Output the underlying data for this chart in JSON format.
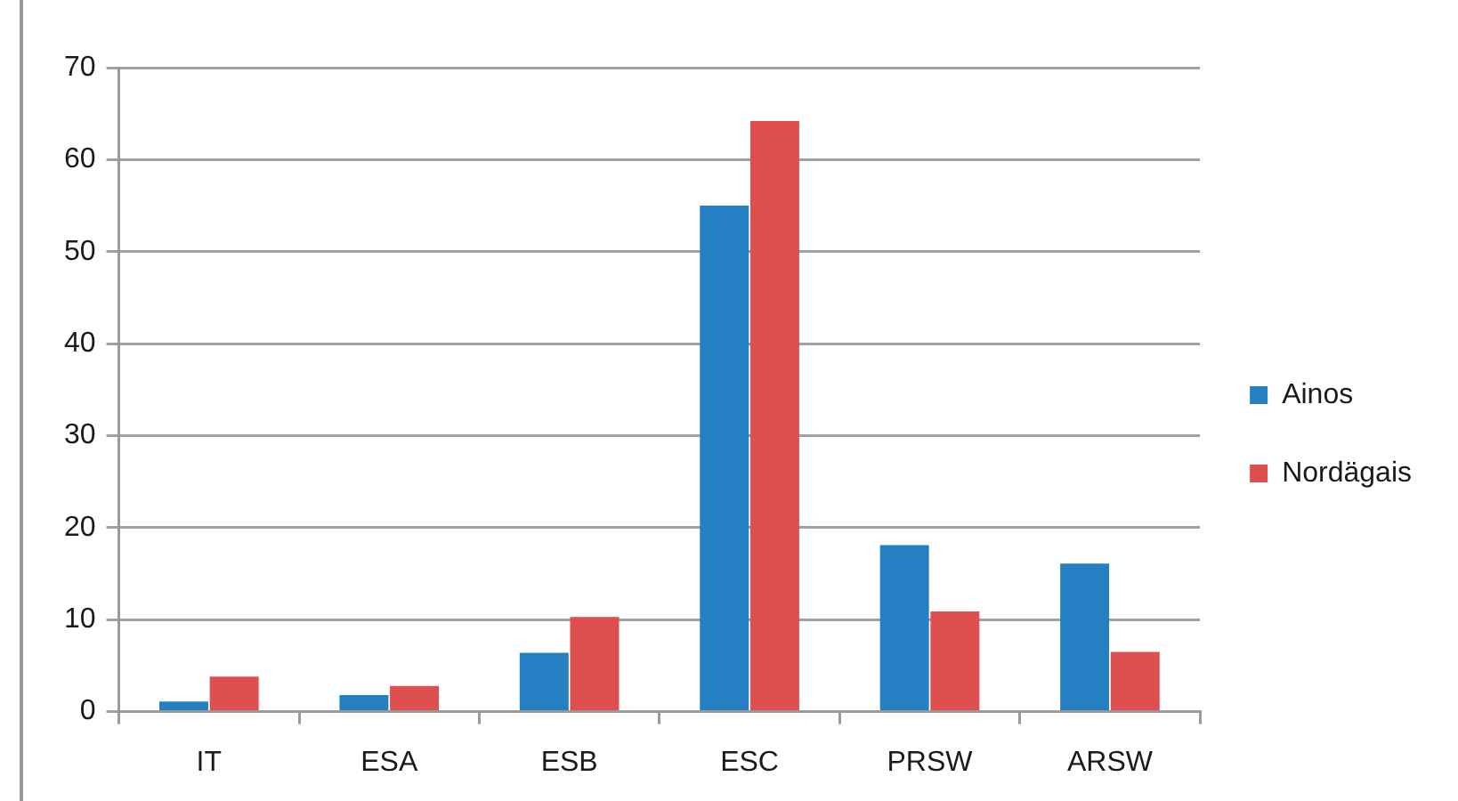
{
  "chart_data": {
    "type": "bar",
    "categories": [
      "IT",
      "ESA",
      "ESB",
      "ESC",
      "PRSW",
      "ARSW"
    ],
    "series": [
      {
        "name": "Ainos",
        "color": "#2580c3",
        "values": [
          1.1,
          1.8,
          6.4,
          55.0,
          18.1,
          16.1
        ]
      },
      {
        "name": "Nordägais",
        "color": "#de4f4f",
        "values": [
          3.8,
          2.8,
          10.3,
          64.2,
          10.9,
          6.5
        ]
      }
    ],
    "ylim": [
      0,
      70
    ],
    "yticks": [
      0,
      10,
      20,
      30,
      40,
      50,
      60,
      70
    ],
    "grid": "y",
    "legend": "right"
  }
}
